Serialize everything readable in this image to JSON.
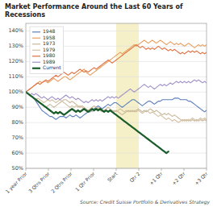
{
  "chart_data": {
    "type": "line",
    "title": "Market Performance Around the Last 60 Years of Recessions",
    "source": "Source: Credit Suisse Portfolio & Derivatives Strategy",
    "x": [
      0,
      0.111111111111111,
      0.222222222222222,
      0.333333333333333,
      0.444444444444444,
      0.555555555555556,
      0.666666666666667,
      0.777777777777778,
      0.888888888888889,
      1,
      1.111111111111111,
      1.222222222222222,
      1.333333333333333,
      1.444444444444444,
      1.555555555555556,
      1.666666666666667,
      1.777777777777778,
      1.888888888888889,
      2,
      2.111111111111111,
      2.222222222222222,
      2.333333333333333,
      2.444444444444444,
      2.555555555555556,
      2.666666666666667,
      2.777777777777778,
      2.888888888888889,
      3,
      3.111111111111111,
      3.222222222222222,
      3.333333333333333,
      3.444444444444444,
      3.555555555555556,
      3.666666666666667,
      3.777777777777778,
      3.888888888888889,
      4,
      4.111111111111111,
      4.222222222222222,
      4.333333333333333,
      4.444444444444444,
      4.555555555555556,
      4.666666666666667,
      4.777777777777778,
      4.888888888888889,
      5,
      5.111111111111111,
      5.222222222222222,
      5.333333333333333,
      5.444444444444444,
      5.555555555555556,
      5.666666666666667,
      5.777777777777778,
      5.888888888888889,
      6,
      6.111111111111111,
      6.222222222222222,
      6.333333333333333,
      6.444444444444444,
      6.555555555555556,
      6.666666666666667,
      6.777777777777778,
      6.888888888888889,
      7,
      7.111111111111111,
      7.222222222222222,
      7.333333333333333,
      7.444444444444444,
      7.555555555555556,
      7.666666666666667,
      7.777777777777778,
      7.888888888888889,
      8,
      8.11111111111111,
      8.222222222222221,
      8.333333333333332,
      8.444444444444445,
      8.555555555555555,
      8.666666666666668,
      8.777777777777779,
      8.88888888888889,
      9,
      9.11111111111111,
      9.222222222222221,
      9.333333333333332,
      9.444444444444445,
      9.555555555555555,
      9.666666666666668,
      9.777777777777779,
      9.88888888888889,
      10
    ],
    "xlim": [
      0,
      10
    ],
    "xticks": [
      {
        "value": 0,
        "label": "1 year Prior"
      },
      {
        "value": 1.25,
        "label": "3 Qtrs Prior"
      },
      {
        "value": 2.5,
        "label": "2 Qtrs Prior"
      },
      {
        "value": 3.75,
        "label": "1 Qtr Prior"
      },
      {
        "value": 5,
        "label": "Start"
      },
      {
        "value": 6.25,
        "label": "Qtr 2"
      },
      {
        "value": 7.5,
        "label": "+1 Qtr"
      },
      {
        "value": 8.75,
        "label": "+2 Qtr"
      },
      {
        "value": 10,
        "label": "+3 Qtr"
      }
    ],
    "ylim": [
      50,
      145
    ],
    "yticks": [
      {
        "value": 50,
        "label": "50%"
      },
      {
        "value": 60,
        "label": "60%"
      },
      {
        "value": 70,
        "label": "70%"
      },
      {
        "value": 80,
        "label": "80%"
      },
      {
        "value": 90,
        "label": "90%"
      },
      {
        "value": 100,
        "label": "100%"
      },
      {
        "value": 110,
        "label": "110%"
      },
      {
        "value": 120,
        "label": "120%"
      },
      {
        "value": 130,
        "label": "130%"
      },
      {
        "value": 140,
        "label": "140%"
      }
    ],
    "shade_x": [
      5,
      6.25
    ],
    "grid": true,
    "legend": "upper left",
    "series": [
      {
        "name": "1948",
        "color": "#5b7fbd",
        "values": [
          100,
          99,
          98,
          97,
          96,
          94,
          92,
          90,
          88,
          87,
          86,
          85,
          84,
          84,
          83,
          82,
          83,
          84,
          84,
          84,
          83,
          84,
          85,
          84,
          84,
          85,
          84,
          83,
          84,
          85,
          86,
          87,
          87,
          88,
          89,
          90,
          91,
          90,
          89,
          90,
          91,
          92,
          91,
          92,
          93,
          93,
          92,
          91,
          90,
          91,
          92,
          93,
          94,
          95,
          95,
          94,
          93,
          92,
          91,
          92,
          93,
          94,
          94,
          93,
          92,
          93,
          94,
          94,
          95,
          95,
          95,
          95,
          95,
          95,
          96,
          96,
          96,
          95,
          95,
          95,
          95,
          94,
          94,
          93,
          92,
          91,
          90,
          89,
          88,
          87,
          88
        ]
      },
      {
        "name": "1958",
        "color": "#e8a060",
        "values": [
          100,
          101,
          102,
          103,
          104,
          105,
          106,
          107,
          106,
          107,
          107,
          106,
          107,
          108,
          109,
          108,
          107,
          108,
          109,
          110,
          110,
          109,
          108,
          109,
          110,
          111,
          112,
          113,
          114,
          115,
          113,
          112,
          111,
          112,
          113,
          114,
          115,
          116,
          117,
          118,
          119,
          120,
          121,
          122,
          123,
          124,
          125,
          126,
          125,
          126,
          127,
          128,
          129,
          130,
          131,
          130,
          131,
          132,
          133,
          134,
          133,
          132,
          133,
          134,
          133,
          132,
          133,
          134,
          133,
          132,
          131,
          132,
          133,
          132,
          131,
          132,
          131,
          132,
          131,
          130,
          131,
          132,
          131,
          130,
          129,
          130,
          131,
          130,
          131,
          130,
          131
        ]
      },
      {
        "name": "1973",
        "color": "#c8b89a",
        "values": [
          100,
          99,
          98,
          97,
          96,
          95,
          94,
          93,
          92,
          91,
          90,
          91,
          92,
          91,
          90,
          91,
          92,
          93,
          94,
          95,
          95,
          94,
          93,
          94,
          93,
          92,
          91,
          90,
          91,
          90,
          89,
          88,
          89,
          90,
          91,
          90,
          89,
          88,
          87,
          88,
          89,
          90,
          89,
          88,
          87,
          88,
          87,
          86,
          85,
          86,
          87,
          88,
          87,
          88,
          87,
          88,
          89,
          88,
          87,
          88,
          87,
          88,
          89,
          88,
          87,
          88,
          87,
          86,
          85,
          86,
          85,
          86,
          85,
          84,
          85,
          84,
          83,
          82,
          81,
          82,
          81,
          82,
          81,
          82,
          81,
          82,
          81,
          82,
          81,
          82,
          81
        ]
      },
      {
        "name": "1979",
        "color": "#d4c0a0",
        "values": [
          100,
          99,
          98,
          97,
          96,
          95,
          96,
          95,
          94,
          93,
          94,
          95,
          94,
          95,
          94,
          93,
          94,
          95,
          94,
          93,
          92,
          91,
          90,
          91,
          90,
          91,
          90,
          91,
          90,
          89,
          88,
          87,
          88,
          87,
          88,
          89,
          90,
          89,
          88,
          87,
          88,
          87,
          88,
          87,
          88,
          87,
          88,
          89,
          88,
          87,
          88,
          87,
          88,
          87,
          88,
          87,
          88,
          87,
          86,
          87,
          88,
          87,
          86,
          87,
          86,
          85,
          84,
          85,
          84,
          83,
          82,
          83,
          82,
          81,
          82,
          81,
          80,
          81,
          82,
          81,
          82,
          81,
          82,
          83,
          82,
          81,
          82,
          83,
          82,
          83,
          82
        ]
      },
      {
        "name": "1980",
        "color": "#e07040",
        "values": [
          100,
          101,
          102,
          103,
          104,
          105,
          106,
          105,
          106,
          107,
          108,
          107,
          108,
          109,
          110,
          111,
          110,
          111,
          112,
          113,
          112,
          111,
          112,
          113,
          112,
          113,
          114,
          115,
          114,
          113,
          114,
          113,
          114,
          115,
          116,
          115,
          116,
          117,
          118,
          119,
          120,
          121,
          120,
          119,
          120,
          121,
          122,
          123,
          124,
          125,
          126,
          127,
          128,
          129,
          130,
          131,
          130,
          129,
          130,
          129,
          128,
          129,
          128,
          129,
          128,
          129,
          130,
          129,
          128,
          129,
          128,
          127,
          128,
          127,
          128,
          127,
          126,
          125,
          126,
          125,
          126,
          127,
          126,
          127,
          126,
          127,
          126,
          125,
          126,
          125,
          126
        ]
      },
      {
        "name": "1989",
        "color": "#a090c8",
        "values": [
          100,
          99,
          98,
          99,
          98,
          99,
          98,
          97,
          96,
          97,
          96,
          95,
          96,
          97,
          96,
          95,
          96,
          95,
          96,
          97,
          98,
          97,
          96,
          97,
          96,
          95,
          96,
          95,
          94,
          93,
          94,
          93,
          94,
          95,
          94,
          95,
          94,
          95,
          94,
          95,
          96,
          97,
          96,
          97,
          96,
          97,
          96,
          97,
          98,
          99,
          100,
          101,
          102,
          101,
          100,
          101,
          102,
          103,
          104,
          105,
          104,
          103,
          104,
          103,
          102,
          103,
          104,
          105,
          104,
          105,
          104,
          105,
          106,
          105,
          106,
          107,
          106,
          107,
          106,
          107,
          106,
          107,
          106,
          107,
          108,
          107,
          108,
          107,
          106,
          107,
          106
        ]
      },
      {
        "name": "Current",
        "color": "#1a5c2a",
        "values": [
          100,
          99,
          98,
          97,
          96,
          95,
          94,
          93,
          92,
          91,
          90,
          89,
          88,
          87,
          86,
          87,
          86,
          87,
          86,
          85,
          86,
          87,
          88,
          89,
          88,
          87,
          88,
          87,
          88,
          89,
          88,
          87,
          88,
          89,
          88,
          89,
          88,
          89,
          88,
          87,
          88,
          87,
          88,
          87,
          86,
          85,
          84,
          83,
          82,
          81,
          80,
          79,
          78,
          77,
          76,
          75,
          74,
          73,
          72,
          71,
          70,
          69,
          68,
          67,
          66,
          65,
          64,
          63,
          62,
          61,
          60,
          61,
          null,
          null,
          null,
          null,
          null,
          null,
          null,
          null,
          null,
          null,
          null,
          null,
          null,
          null,
          null,
          null,
          null,
          null,
          null
        ]
      }
    ]
  }
}
